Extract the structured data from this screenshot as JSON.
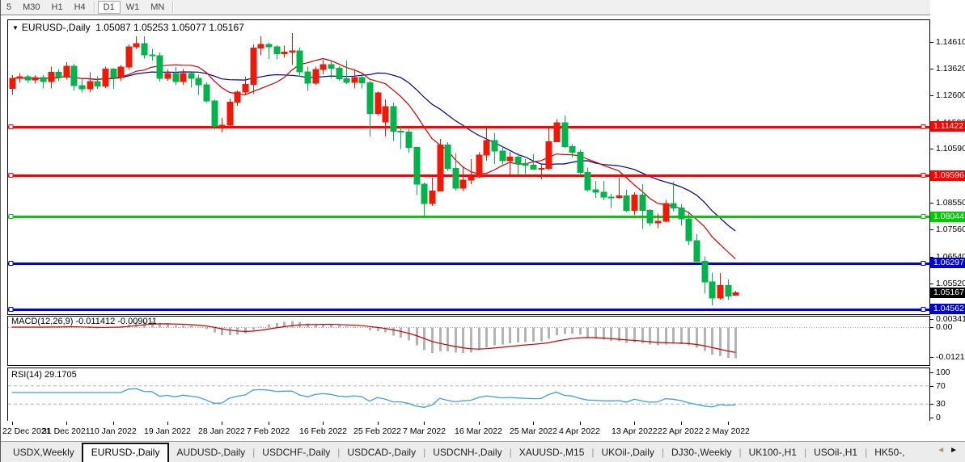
{
  "toolbar": {
    "timeframes": [
      "5",
      "M30",
      "H1",
      "H4",
      "D1",
      "W1",
      "MN"
    ],
    "active": "D1"
  },
  "chart": {
    "header_symbol": "EURUSD-,Daily",
    "header_ohlc": "1.05087 1.05253 1.05077 1.05167"
  },
  "chart_data": {
    "type": "candlestick",
    "title": "EURUSD-,Daily",
    "colors": {
      "bull": "#f01807",
      "bear": "#00b44b",
      "ma_fast": "#cc0000",
      "ma_slow": "#000089",
      "macd_hist": "#b4b4b4",
      "macd_signal": "#c80000",
      "rsi_line": "#3d9fe0",
      "hline_red": "#ff0000",
      "hline_green": "#00dd00",
      "hline_blue": "#0000dd",
      "current_badge": "#000000"
    },
    "x_axis_labels": [
      {
        "text": "22 Dec 2021",
        "bar": 0
      },
      {
        "text": "31 Dec 2021",
        "bar": 7
      },
      {
        "text": "10 Jan 2022",
        "bar": 13
      },
      {
        "text": "19 Jan 2022",
        "bar": 20
      },
      {
        "text": "28 Jan 2022",
        "bar": 27
      },
      {
        "text": "7 Feb 2022",
        "bar": 33
      },
      {
        "text": "16 Feb 2022",
        "bar": 40
      },
      {
        "text": "25 Feb 2022",
        "bar": 47
      },
      {
        "text": "7 Mar 2022",
        "bar": 53
      },
      {
        "text": "16 Mar 2022",
        "bar": 60
      },
      {
        "text": "25 Mar 2022",
        "bar": 67
      },
      {
        "text": "4 Apr 2022",
        "bar": 73
      },
      {
        "text": "13 Apr 2022",
        "bar": 80
      },
      {
        "text": "22 Apr 2022",
        "bar": 86
      },
      {
        "text": "2 May 2022",
        "bar": 92
      }
    ],
    "price_ticks": [
      1.1461,
      1.1362,
      1.126,
      1.1158,
      1.1059,
      1.0957,
      1.0855,
      1.0756,
      1.0654,
      1.0552,
      1.0453
    ],
    "horizontal_lines": [
      {
        "price": 1.11422,
        "label": "1.11422",
        "color": "#ff0000"
      },
      {
        "price": 1.09596,
        "label": "1.09596",
        "color": "#ff0000"
      },
      {
        "price": 1.08044,
        "label": "1.08044",
        "color": "#00cc00"
      },
      {
        "price": 1.06297,
        "label": "1.06297",
        "color": "#0000dd"
      },
      {
        "price": 1.04562,
        "label": "1.04562",
        "color": "#0000dd"
      }
    ],
    "current_price": {
      "value": 1.05167,
      "label": "1.05167"
    },
    "moving_averages": [
      {
        "name": "fast",
        "period": 10,
        "color": "#cc0000"
      },
      {
        "name": "slow",
        "period": 20,
        "color": "#000089"
      }
    ],
    "candles": [
      [
        1.1287,
        1.1336,
        1.1262,
        1.1324
      ],
      [
        1.1324,
        1.1344,
        1.1308,
        1.133
      ],
      [
        1.133,
        1.1338,
        1.1308,
        1.1318
      ],
      [
        1.1318,
        1.1336,
        1.1305,
        1.1328
      ],
      [
        1.1328,
        1.1336,
        1.1287,
        1.1312
      ],
      [
        1.1312,
        1.1369,
        1.1286,
        1.1347
      ],
      [
        1.1347,
        1.136,
        1.1315,
        1.1329
      ],
      [
        1.1329,
        1.1386,
        1.132,
        1.137
      ],
      [
        1.137,
        1.138,
        1.1279,
        1.1297
      ],
      [
        1.1297,
        1.1323,
        1.1272,
        1.1285
      ],
      [
        1.1285,
        1.1347,
        1.1273,
        1.1312
      ],
      [
        1.1312,
        1.1332,
        1.1285,
        1.1295
      ],
      [
        1.1295,
        1.1368,
        1.1288,
        1.136
      ],
      [
        1.136,
        1.1363,
        1.1285,
        1.1328
      ],
      [
        1.1328,
        1.1375,
        1.1314,
        1.1367
      ],
      [
        1.1367,
        1.1453,
        1.1357,
        1.1443
      ],
      [
        1.1443,
        1.1482,
        1.1435,
        1.1455
      ],
      [
        1.1455,
        1.1483,
        1.1399,
        1.1413
      ],
      [
        1.1413,
        1.1435,
        1.1391,
        1.141
      ],
      [
        1.141,
        1.1422,
        1.1313,
        1.1325
      ],
      [
        1.1325,
        1.1358,
        1.1316,
        1.1343
      ],
      [
        1.1343,
        1.1369,
        1.1301,
        1.1313
      ],
      [
        1.1313,
        1.136,
        1.13,
        1.1343
      ],
      [
        1.1343,
        1.1348,
        1.129,
        1.1325
      ],
      [
        1.1325,
        1.1338,
        1.1263,
        1.1301
      ],
      [
        1.1301,
        1.131,
        1.1234,
        1.124
      ],
      [
        1.124,
        1.1246,
        1.1131,
        1.1145
      ],
      [
        1.1145,
        1.1175,
        1.1121,
        1.1148
      ],
      [
        1.1148,
        1.1248,
        1.1141,
        1.1235
      ],
      [
        1.1235,
        1.1279,
        1.1221,
        1.1273
      ],
      [
        1.1273,
        1.1331,
        1.1266,
        1.1302
      ],
      [
        1.1302,
        1.1452,
        1.1266,
        1.1438
      ],
      [
        1.1438,
        1.1483,
        1.1411,
        1.1452
      ],
      [
        1.1452,
        1.1459,
        1.1398,
        1.1443
      ],
      [
        1.1443,
        1.1449,
        1.1396,
        1.1417
      ],
      [
        1.1417,
        1.1448,
        1.1402,
        1.1424
      ],
      [
        1.1424,
        1.1495,
        1.1375,
        1.1428
      ],
      [
        1.1428,
        1.1442,
        1.133,
        1.1349
      ],
      [
        1.1349,
        1.1369,
        1.1277,
        1.1306
      ],
      [
        1.1306,
        1.1368,
        1.1301,
        1.1358
      ],
      [
        1.1358,
        1.1395,
        1.134,
        1.1376
      ],
      [
        1.1376,
        1.1393,
        1.1324,
        1.1362
      ],
      [
        1.1362,
        1.137,
        1.1316,
        1.1323
      ],
      [
        1.1323,
        1.1391,
        1.1304,
        1.131
      ],
      [
        1.131,
        1.1359,
        1.1287,
        1.1327
      ],
      [
        1.1327,
        1.1342,
        1.1287,
        1.1308
      ],
      [
        1.1308,
        1.1316,
        1.1106,
        1.1193
      ],
      [
        1.1193,
        1.1274,
        1.1184,
        1.127
      ],
      [
        1.116,
        1.1246,
        1.1106,
        1.1218
      ],
      [
        1.1218,
        1.1233,
        1.109,
        1.1125
      ],
      [
        1.1125,
        1.1142,
        1.1058,
        1.1122
      ],
      [
        1.1122,
        1.1134,
        1.1045,
        1.1065
      ],
      [
        1.1065,
        1.1067,
        1.0886,
        1.0926
      ],
      [
        1.0926,
        1.0932,
        1.0806,
        1.0853
      ],
      [
        1.0853,
        1.095,
        1.0845,
        1.0901
      ],
      [
        1.0901,
        1.1096,
        1.0899,
        1.1074
      ],
      [
        1.1074,
        1.1084,
        1.0977,
        1.0986
      ],
      [
        1.0986,
        1.1043,
        1.0902,
        1.0911
      ],
      [
        1.0911,
        1.0993,
        1.09,
        1.0941
      ],
      [
        1.0941,
        1.102,
        1.0926,
        1.0953
      ],
      [
        1.0953,
        1.1047,
        1.0949,
        1.1036
      ],
      [
        1.1036,
        1.1138,
        1.1014,
        1.109
      ],
      [
        1.109,
        1.1119,
        1.1003,
        1.1051
      ],
      [
        1.1051,
        1.1069,
        1.1001,
        1.1015
      ],
      [
        1.1015,
        1.1047,
        1.0961,
        1.1028
      ],
      [
        1.1028,
        1.1044,
        1.0963,
        1.1004
      ],
      [
        1.1004,
        1.1021,
        1.0965,
        1.0998
      ],
      [
        1.0998,
        1.104,
        1.098,
        1.0983
      ],
      [
        1.0983,
        1.0999,
        1.0944,
        1.0985
      ],
      [
        1.0985,
        1.1137,
        1.098,
        1.1086
      ],
      [
        1.1086,
        1.1171,
        1.1084,
        1.1158
      ],
      [
        1.1158,
        1.1185,
        1.1061,
        1.1067
      ],
      [
        1.1067,
        1.1077,
        1.1027,
        1.1047
      ],
      [
        1.1047,
        1.1056,
        1.096,
        1.0971
      ],
      [
        1.0971,
        1.0988,
        1.0899,
        1.0905
      ],
      [
        1.0905,
        1.0938,
        1.0874,
        1.0896
      ],
      [
        1.0896,
        1.0938,
        1.0865,
        1.0878
      ],
      [
        1.0878,
        1.089,
        1.0837,
        1.0876
      ],
      [
        1.0876,
        1.095,
        1.0872,
        1.0882
      ],
      [
        1.0882,
        1.0905,
        1.0821,
        1.0827
      ],
      [
        1.0827,
        1.0896,
        1.0809,
        1.0886
      ],
      [
        1.0886,
        1.0926,
        1.0757,
        1.0827
      ],
      [
        1.0827,
        1.0832,
        1.0769,
        1.0781
      ],
      [
        1.0781,
        1.0815,
        1.0761,
        1.0786
      ],
      [
        1.0786,
        1.0867,
        1.0783,
        1.0853
      ],
      [
        1.0853,
        1.0936,
        1.0824,
        1.0836
      ],
      [
        1.0836,
        1.0852,
        1.077,
        1.0795
      ],
      [
        1.0795,
        1.0824,
        1.0697,
        1.0713
      ],
      [
        1.0713,
        1.0738,
        1.0633,
        1.0636
      ],
      [
        1.0636,
        1.0655,
        1.0514,
        1.0558
      ],
      [
        1.0558,
        1.0593,
        1.0471,
        1.0498
      ],
      [
        1.0498,
        1.0592,
        1.0492,
        1.0545
      ],
      [
        1.0545,
        1.0568,
        1.049,
        1.0505
      ],
      [
        1.05087,
        1.05253,
        1.05077,
        1.05167
      ]
    ],
    "indicators": {
      "macd": {
        "label": "MACD(12,26,9) -0.011412 -0.009011",
        "fast": 12,
        "slow": 26,
        "signal": 9,
        "main_value": -0.011412,
        "signal_value": -0.009011,
        "axis_ticks": [
          {
            "value": 0.003411,
            "text": "0.003411"
          },
          {
            "value": 0.0,
            "text": "0.00"
          },
          {
            "value": -0.012118,
            "text": "-0.012118"
          }
        ]
      },
      "rsi": {
        "label": "RSI(14) 29.1705",
        "period": 14,
        "value": 29.1705,
        "levels": [
          70,
          30
        ],
        "axis_ticks": [
          {
            "value": 100,
            "text": "100"
          },
          {
            "value": 70,
            "text": "70"
          },
          {
            "value": 30,
            "text": "30"
          },
          {
            "value": 0,
            "text": "0"
          }
        ]
      }
    }
  },
  "tabs": {
    "items": [
      "USDX,Weekly",
      "EURUSD-,Daily",
      "AUDUSD-,Daily",
      "USDCHF-,Daily",
      "USDCAD-,Daily",
      "USDCNH-,Daily",
      "XAUUSD-,M15",
      "UKOil-,Daily",
      "DJ30-,Weekly",
      "UK100-,H1",
      "USOil-,H1",
      "HK50-,"
    ],
    "active_index": 1,
    "scroll_left": "◄",
    "scroll_right": "►"
  }
}
